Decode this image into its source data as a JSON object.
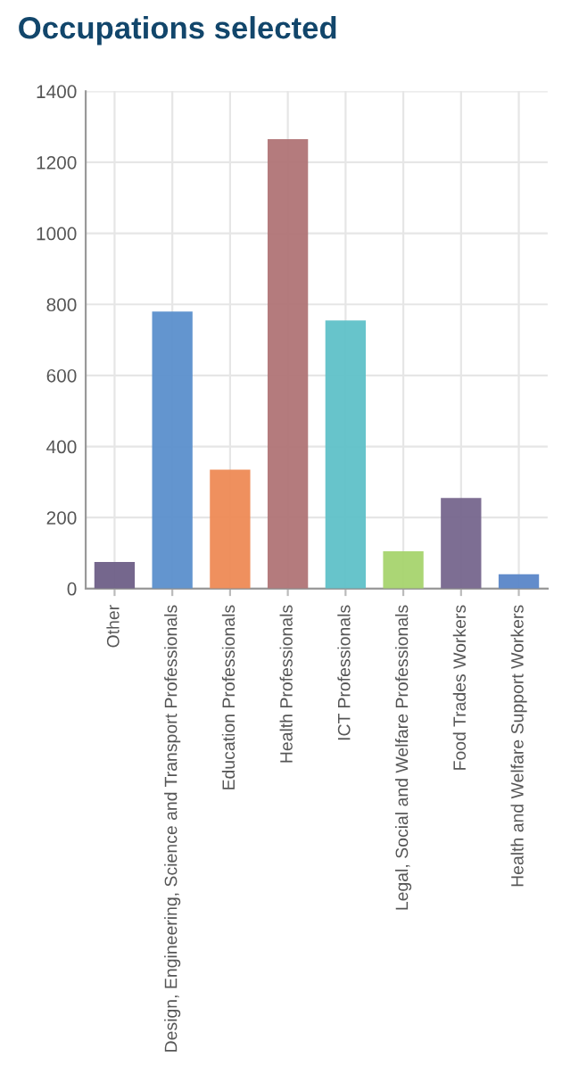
{
  "chart_data": {
    "type": "bar",
    "title": "Occupations selected",
    "categories": [
      "Other",
      "Design, Engineering, Science and Transport Professionals",
      "Education Professionals",
      "Health Professionals",
      "ICT Professionals",
      "Legal, Social and Welfare Professionals",
      "Food Trades Workers",
      "Health and Welfare Support Workers"
    ],
    "values": [
      75,
      780,
      335,
      1265,
      755,
      105,
      255,
      40
    ],
    "colors": [
      "#6e5f87",
      "#5b8fcc",
      "#ee8a55",
      "#b07476",
      "#5fc1c8",
      "#a6d46e",
      "#76668d",
      "#5a86c8"
    ],
    "ylim": [
      0,
      1400
    ],
    "yticks": [
      0,
      200,
      400,
      600,
      800,
      1000,
      1200,
      1400
    ],
    "grid": true,
    "legend": false
  }
}
